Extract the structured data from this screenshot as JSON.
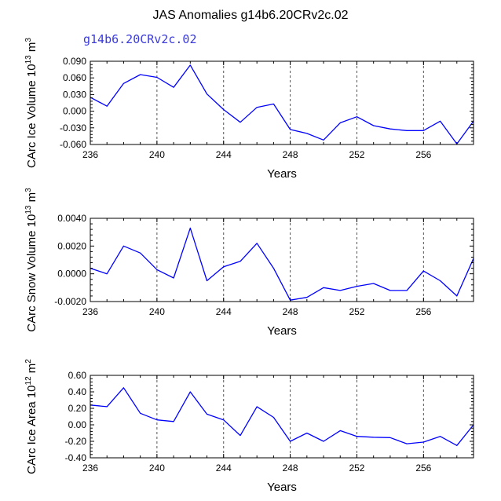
{
  "figure": {
    "title": "JAS Anomalies g14b6.20CRv2c.02",
    "subtitle": "g14b6.20CRv2c.02",
    "line_color": "#0000ff",
    "grid_color": "#555555"
  },
  "chart_data": [
    {
      "type": "line",
      "name": "ice-volume",
      "title": "",
      "xlabel": "Years",
      "ylabel_main": "CArc Ice Volume 10",
      "ylabel_exp": "13",
      "ylabel_unit": " m",
      "ylabel_unit_exp": "3",
      "xlim": [
        236,
        259
      ],
      "ylim": [
        -0.06,
        0.09
      ],
      "xticks": [
        236,
        240,
        244,
        248,
        252,
        256
      ],
      "xtick_labels": [
        "236",
        "240",
        "244",
        "248",
        "252",
        "256"
      ],
      "yticks": [
        -0.06,
        -0.03,
        0.0,
        0.03,
        0.06,
        0.09
      ],
      "ytick_labels": [
        "-0.060",
        "-0.030",
        "0.000",
        "0.030",
        "0.060",
        "0.090"
      ],
      "vgrid": [
        240,
        244,
        248,
        252,
        256
      ],
      "x": [
        236,
        237,
        238,
        239,
        240,
        241,
        242,
        243,
        244,
        245,
        246,
        247,
        248,
        249,
        250,
        251,
        252,
        253,
        254,
        255,
        256,
        257,
        258,
        259
      ],
      "values": [
        0.025,
        0.009,
        0.05,
        0.066,
        0.061,
        0.043,
        0.083,
        0.031,
        0.003,
        -0.02,
        0.007,
        0.013,
        -0.033,
        -0.04,
        -0.052,
        -0.021,
        -0.01,
        -0.026,
        -0.032,
        -0.035,
        -0.035,
        -0.018,
        -0.059,
        -0.018
      ]
    },
    {
      "type": "line",
      "name": "snow-volume",
      "title": "",
      "xlabel": "Years",
      "ylabel_main": "CArc Snow Volume 10",
      "ylabel_exp": "13",
      "ylabel_unit": " m",
      "ylabel_unit_exp": "3",
      "xlim": [
        236,
        259
      ],
      "ylim": [
        -0.002,
        0.004
      ],
      "xticks": [
        236,
        240,
        244,
        248,
        252,
        256
      ],
      "xtick_labels": [
        "236",
        "240",
        "244",
        "248",
        "252",
        "256"
      ],
      "yticks": [
        -0.002,
        0.0,
        0.002,
        0.004
      ],
      "ytick_labels": [
        "-0.0020",
        "0.0000",
        "0.0020",
        "0.0040"
      ],
      "vgrid": [
        240,
        244,
        248,
        252,
        256
      ],
      "x": [
        236,
        237,
        238,
        239,
        240,
        241,
        242,
        243,
        244,
        245,
        246,
        247,
        248,
        249,
        250,
        251,
        252,
        253,
        254,
        255,
        256,
        257,
        258,
        259
      ],
      "values": [
        0.0004,
        0.0,
        0.002,
        0.0015,
        0.0003,
        -0.0003,
        0.0033,
        -0.0005,
        0.0005,
        0.0009,
        0.0022,
        0.0004,
        -0.0019,
        -0.0017,
        -0.001,
        -0.0012,
        -0.0009,
        -0.0007,
        -0.0012,
        -0.0012,
        0.0002,
        -0.0005,
        -0.0016,
        0.0011
      ]
    },
    {
      "type": "line",
      "name": "ice-area",
      "title": "",
      "xlabel": "Years",
      "ylabel_main": "CArc Ice Area 10",
      "ylabel_exp": "12",
      "ylabel_unit": " m",
      "ylabel_unit_exp": "2",
      "xlim": [
        236,
        259
      ],
      "ylim": [
        -0.4,
        0.6
      ],
      "xticks": [
        236,
        240,
        244,
        248,
        252,
        256
      ],
      "xtick_labels": [
        "236",
        "240",
        "244",
        "248",
        "252",
        "256"
      ],
      "yticks": [
        -0.4,
        -0.2,
        0.0,
        0.2,
        0.4,
        0.6
      ],
      "ytick_labels": [
        "-0.40",
        "-0.20",
        "0.00",
        "0.20",
        "0.40",
        "0.60"
      ],
      "vgrid": [
        240,
        244,
        248,
        252,
        256
      ],
      "x": [
        236,
        237,
        238,
        239,
        240,
        241,
        242,
        243,
        244,
        245,
        246,
        247,
        248,
        249,
        250,
        251,
        252,
        253,
        254,
        255,
        256,
        257,
        258,
        259
      ],
      "values": [
        0.24,
        0.22,
        0.45,
        0.14,
        0.06,
        0.04,
        0.4,
        0.13,
        0.06,
        -0.13,
        0.22,
        0.09,
        -0.2,
        -0.1,
        -0.2,
        -0.07,
        -0.14,
        -0.15,
        -0.155,
        -0.23,
        -0.21,
        -0.14,
        -0.25,
        0.0
      ]
    }
  ]
}
